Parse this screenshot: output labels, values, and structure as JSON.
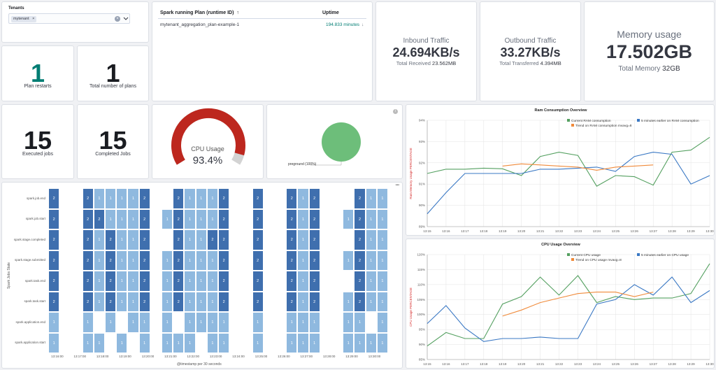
{
  "tenants": {
    "label": "Tenants",
    "tag": "mytenant",
    "clear_glyph": "×"
  },
  "plans_table": {
    "col_plan": "Spark running Plan (runtime ID)",
    "sort_arrow": "↑",
    "col_uptime": "Uptime",
    "rows": [
      {
        "plan": "mytenant_aggregation_plan-example-1",
        "uptime": "194.833 minutes",
        "arrow": "↓"
      }
    ]
  },
  "inbound": {
    "title": "Inbound Traffic",
    "value": "24.694KB/s",
    "sub_label": "Total Received",
    "sub_value": "23.562MB"
  },
  "outbound": {
    "title": "Outbound Traffic",
    "value": "33.27KB/s",
    "sub_label": "Total Transferred",
    "sub_value": "4.394MB"
  },
  "memory": {
    "title": "Memory usage",
    "value": "17.502GB",
    "sub_label": "Total Memory",
    "sub_value": "32GB"
  },
  "plan_restarts": {
    "value": "1",
    "label": "Plan restarts",
    "color": "#017d73"
  },
  "total_plans": {
    "value": "1",
    "label": "Total number of plans"
  },
  "executed_jobs": {
    "value": "15",
    "label": "Executed jobs"
  },
  "completed_jobs": {
    "value": "15",
    "label": "Completed Jobs"
  },
  "cpu_gauge": {
    "title": "CPU Usage",
    "value": "93.4%",
    "fraction": 0.934,
    "color": "#bd271e"
  },
  "pie": {
    "label": "preground (100%)",
    "color": "#6dbe7a"
  },
  "heatmap": {
    "y_title": "Spark Jobs State",
    "x_title": "@timestamp per 30 seconds",
    "rows": [
      "spark.job.end",
      "spark.job.start",
      "spark.stage.completed",
      "spark.stage.submitted",
      "spark.task.end",
      "spark.task.start",
      "spark.application.end",
      "spark.application.start"
    ],
    "x_labels": [
      "13:16:00",
      "13:17:00",
      "13:18:00",
      "13:19:00",
      "13:20:00",
      "13:21:00",
      "13:22:00",
      "13:23:00",
      "13:24:00",
      "13:25:00",
      "13:26:00",
      "13:27:00",
      "13:28:00",
      "13:29:00",
      "13:30:00"
    ],
    "cells": [
      [
        [
          0,
          "2"
        ],
        [
          3,
          "2"
        ],
        [
          4,
          "1"
        ],
        [
          5,
          "1"
        ],
        [
          6,
          "1"
        ],
        [
          7,
          "1"
        ],
        [
          8,
          "2"
        ],
        [
          11,
          "2"
        ],
        [
          12,
          "1"
        ],
        [
          13,
          "1"
        ],
        [
          14,
          "1"
        ],
        [
          15,
          "2"
        ],
        [
          18,
          "2"
        ],
        [
          21,
          "2"
        ],
        [
          22,
          "1"
        ],
        [
          23,
          "2"
        ],
        [
          27,
          "2"
        ],
        [
          28,
          "1"
        ],
        [
          29,
          "1"
        ]
      ],
      [
        [
          0,
          "2"
        ],
        [
          3,
          "2"
        ],
        [
          4,
          "2"
        ],
        [
          5,
          "1"
        ],
        [
          6,
          "1"
        ],
        [
          7,
          "1"
        ],
        [
          8,
          "2"
        ],
        [
          10,
          "1"
        ],
        [
          11,
          "2"
        ],
        [
          12,
          "1"
        ],
        [
          13,
          "1"
        ],
        [
          14,
          "1"
        ],
        [
          15,
          "2"
        ],
        [
          18,
          "2"
        ],
        [
          21,
          "2"
        ],
        [
          22,
          "1"
        ],
        [
          23,
          "2"
        ],
        [
          26,
          "1"
        ],
        [
          27,
          "2"
        ],
        [
          28,
          "1"
        ],
        [
          29,
          "1"
        ]
      ],
      [
        [
          0,
          "2"
        ],
        [
          3,
          "2"
        ],
        [
          4,
          "1"
        ],
        [
          5,
          "2"
        ],
        [
          6,
          "1"
        ],
        [
          7,
          "1"
        ],
        [
          8,
          "2"
        ],
        [
          11,
          "2"
        ],
        [
          12,
          "1"
        ],
        [
          13,
          "1"
        ],
        [
          14,
          "2"
        ],
        [
          15,
          "2"
        ],
        [
          18,
          "2"
        ],
        [
          21,
          "2"
        ],
        [
          22,
          "1"
        ],
        [
          23,
          "2"
        ],
        [
          27,
          "2"
        ],
        [
          28,
          "1"
        ],
        [
          29,
          "1"
        ]
      ],
      [
        [
          0,
          "2"
        ],
        [
          3,
          "2"
        ],
        [
          4,
          "1"
        ],
        [
          5,
          "2"
        ],
        [
          6,
          "1"
        ],
        [
          7,
          "1"
        ],
        [
          8,
          "2"
        ],
        [
          10,
          "1"
        ],
        [
          11,
          "2"
        ],
        [
          12,
          "1"
        ],
        [
          13,
          "1"
        ],
        [
          14,
          "1"
        ],
        [
          15,
          "2"
        ],
        [
          18,
          "2"
        ],
        [
          21,
          "2"
        ],
        [
          22,
          "1"
        ],
        [
          23,
          "2"
        ],
        [
          26,
          "1"
        ],
        [
          27,
          "2"
        ],
        [
          28,
          "1"
        ],
        [
          29,
          "1"
        ]
      ],
      [
        [
          0,
          "2"
        ],
        [
          3,
          "2"
        ],
        [
          4,
          "1"
        ],
        [
          5,
          "2"
        ],
        [
          6,
          "1"
        ],
        [
          7,
          "1"
        ],
        [
          8,
          "2"
        ],
        [
          10,
          "1"
        ],
        [
          11,
          "2"
        ],
        [
          12,
          "1"
        ],
        [
          13,
          "1"
        ],
        [
          14,
          "1"
        ],
        [
          15,
          "2"
        ],
        [
          18,
          "2"
        ],
        [
          21,
          "2"
        ],
        [
          22,
          "1"
        ],
        [
          23,
          "2"
        ],
        [
          27,
          "2"
        ],
        [
          28,
          "1"
        ],
        [
          29,
          "1"
        ]
      ],
      [
        [
          0,
          "2"
        ],
        [
          3,
          "2"
        ],
        [
          4,
          "1"
        ],
        [
          5,
          "2"
        ],
        [
          6,
          "1"
        ],
        [
          7,
          "1"
        ],
        [
          8,
          "2"
        ],
        [
          10,
          "1"
        ],
        [
          11,
          "2"
        ],
        [
          12,
          "1"
        ],
        [
          13,
          "1"
        ],
        [
          14,
          "1"
        ],
        [
          15,
          "2"
        ],
        [
          18,
          "2"
        ],
        [
          21,
          "2"
        ],
        [
          22,
          "1"
        ],
        [
          23,
          "2"
        ],
        [
          26,
          "1"
        ],
        [
          27,
          "2"
        ],
        [
          28,
          "1"
        ],
        [
          29,
          "1"
        ]
      ],
      [
        [
          0,
          "1"
        ],
        [
          3,
          "1"
        ],
        [
          5,
          "1"
        ],
        [
          7,
          "1"
        ],
        [
          8,
          "1"
        ],
        [
          10,
          "1"
        ],
        [
          12,
          "1"
        ],
        [
          13,
          "1"
        ],
        [
          14,
          "1"
        ],
        [
          15,
          "1"
        ],
        [
          18,
          "1"
        ],
        [
          21,
          "1"
        ],
        [
          22,
          "1"
        ],
        [
          23,
          "1"
        ],
        [
          26,
          "1"
        ],
        [
          27,
          "1"
        ],
        [
          29,
          "1"
        ]
      ],
      [
        [
          0,
          "1"
        ],
        [
          3,
          "1"
        ],
        [
          4,
          "1"
        ],
        [
          6,
          "1"
        ],
        [
          8,
          "1"
        ],
        [
          10,
          "1"
        ],
        [
          11,
          "1"
        ],
        [
          12,
          "1"
        ],
        [
          14,
          "1"
        ],
        [
          15,
          "1"
        ],
        [
          18,
          "1"
        ],
        [
          21,
          "1"
        ],
        [
          22,
          "1"
        ],
        [
          23,
          "1"
        ],
        [
          26,
          "1"
        ],
        [
          27,
          "1"
        ],
        [
          28,
          "1"
        ],
        [
          29,
          "1"
        ]
      ]
    ],
    "dark_color": "#3f6fae",
    "light_color": "#8fb9df",
    "menu_glyph": "•••"
  },
  "chart_data": [
    {
      "type": "line",
      "title": "Ram Consumption Overview",
      "ylabel": "Ram Memory Usage PERCENTAGE",
      "ylim": [
        89,
        94
      ],
      "y_ticks": [
        "89%",
        "90%",
        "91%",
        "92%",
        "93%",
        "94%"
      ],
      "x": [
        "13:15",
        "13:16",
        "13:17",
        "13:18",
        "13:19",
        "13:20",
        "13:21",
        "13:22",
        "13:23",
        "13:24",
        "13:25",
        "13:26",
        "13:27",
        "13:28",
        "13:29",
        "13:30"
      ],
      "x_ticks": [
        "13:15",
        "13:16",
        "13:17",
        "13:18",
        "13:19",
        "13:20",
        "13:21",
        "13:22",
        "13:23",
        "13:24",
        "13:25",
        "13:26",
        "13:27",
        "13:28",
        "13:29",
        "13:30"
      ],
      "series": [
        {
          "name": "Current RAM consumption",
          "color": "#54a060",
          "values": [
            91.5,
            91.7,
            91.7,
            91.75,
            91.72,
            91.4,
            92.3,
            92.5,
            92.35,
            90.9,
            91.4,
            91.35,
            90.95,
            92.5,
            92.6,
            93.2
          ]
        },
        {
          "name": "5 minutes earlier on RAM consumption",
          "color": "#3a78c4",
          "values": [
            89.6,
            90.6,
            91.5,
            91.5,
            91.5,
            91.5,
            91.7,
            91.7,
            91.75,
            91.8,
            91.6,
            92.3,
            92.5,
            92.4,
            91.0,
            91.4
          ]
        },
        {
          "name": "Trend on RAM consumption mvavg=8",
          "color": "#f08a3a",
          "values": [
            null,
            null,
            null,
            null,
            91.85,
            91.95,
            91.9,
            91.85,
            91.8,
            91.65,
            91.8,
            91.85,
            91.9,
            null,
            null,
            null
          ]
        }
      ]
    },
    {
      "type": "line",
      "title": "CPU Usage Overview",
      "ylabel": "CPU Usage PERCENTAGE",
      "ylim": [
        85,
        120
      ],
      "y_ticks": [
        "85%",
        "90%",
        "95%",
        "100%",
        "105%",
        "110%",
        "115%",
        "120%"
      ],
      "x": [
        "13:15",
        "13:16",
        "13:17",
        "13:18",
        "13:19",
        "13:20",
        "13:21",
        "13:22",
        "13:23",
        "13:24",
        "13:25",
        "13:26",
        "13:27",
        "13:28",
        "13:29",
        "13:30"
      ],
      "x_ticks": [
        "13:15",
        "13:16",
        "13:17",
        "13:18",
        "13:19",
        "13:20",
        "13:21",
        "13:22",
        "13:23",
        "13:24",
        "13:25",
        "13:26",
        "13:27",
        "13:28",
        "13:29",
        "13:30"
      ],
      "series": [
        {
          "name": "Current CPU usage",
          "color": "#54a060",
          "values": [
            89.5,
            94,
            92,
            92,
            103.5,
            106,
            112.5,
            106.5,
            113,
            104,
            106,
            105,
            105.5,
            105.5,
            107,
            117
          ]
        },
        {
          "name": "5 minutes earlier on CPU usage",
          "color": "#3a78c4",
          "values": [
            97,
            103,
            95.5,
            91,
            92,
            92,
            92.5,
            92,
            92,
            103.5,
            105,
            110,
            106.5,
            112.5,
            104,
            108
          ]
        },
        {
          "name": "Trend on CPU usage mvavg=8",
          "color": "#f08a3a",
          "values": [
            null,
            null,
            null,
            null,
            99.5,
            101.5,
            104,
            105.5,
            107,
            107.5,
            107.5,
            106,
            107.5,
            null,
            null,
            null
          ]
        }
      ]
    }
  ]
}
